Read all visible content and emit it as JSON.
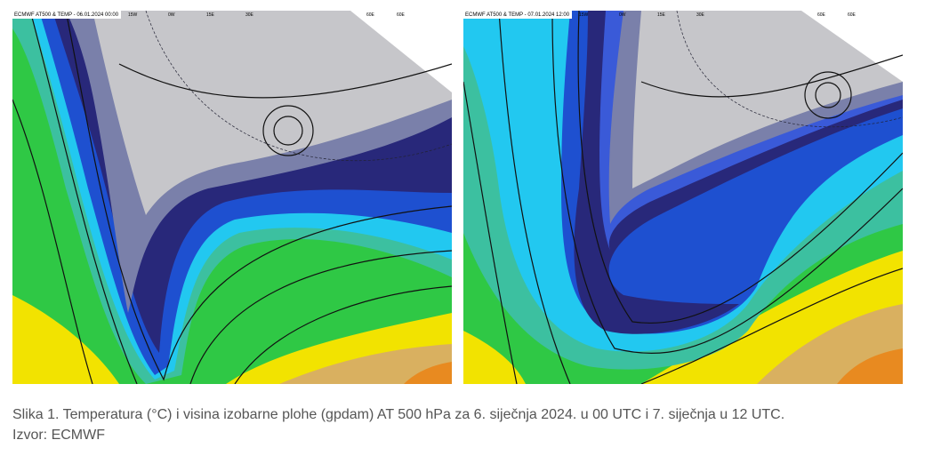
{
  "figures": [
    {
      "header": "ECMWF AT500 & TEMP - 06.01.2024 00:00",
      "lon_labels": [
        "15W",
        "0W",
        "15E",
        "30E",
        "60E",
        "60E"
      ]
    },
    {
      "header": "ECMWF AT500 & TEMP - 07.01.2024 12:00",
      "lon_labels": [
        "15W",
        "0W",
        "15E",
        "30E",
        "60E",
        "60E"
      ]
    }
  ],
  "caption": {
    "line1": "Slika 1. Temperatura (°C) i visina izobarne plohe (gpdam) AT 500 hPa za 6. siječnja 2024. u 00 UTC i 7. siječnja u 12 UTC.",
    "line2": "Izvor: ECMWF"
  }
}
